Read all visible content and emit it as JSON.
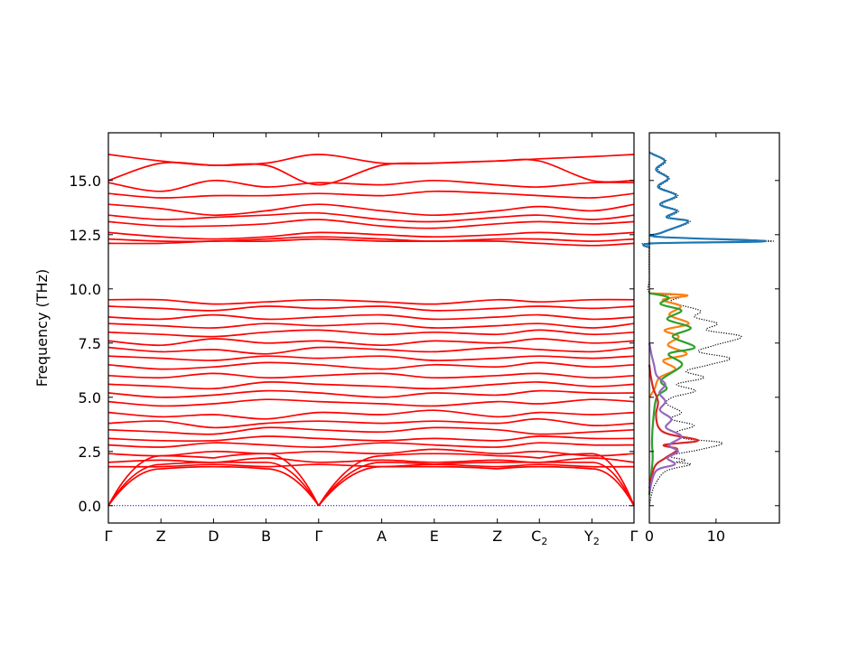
{
  "chart_data": [
    {
      "type": "line",
      "title": "",
      "ylabel": "Frequency (THz)",
      "xlabel": "",
      "ylim": [
        -0.8,
        17.2
      ],
      "yticks": [
        "0.0",
        "2.5",
        "5.0",
        "7.5",
        "10.0",
        "12.5",
        "15.0"
      ],
      "ytick_values": [
        0,
        2.5,
        5,
        7.5,
        10,
        12.5,
        15
      ],
      "path_points": [
        {
          "label": "Γ",
          "sub": ""
        },
        {
          "label": "Z",
          "sub": ""
        },
        {
          "label": "D",
          "sub": ""
        },
        {
          "label": "B",
          "sub": ""
        },
        {
          "label": "Γ",
          "sub": ""
        },
        {
          "label": "A",
          "sub": ""
        },
        {
          "label": "E",
          "sub": ""
        },
        {
          "label": "Z",
          "sub": ""
        },
        {
          "label": "C",
          "sub": "2"
        },
        {
          "label": "Y",
          "sub": "2"
        },
        {
          "label": "Γ",
          "sub": ""
        }
      ],
      "path_distances": [
        0,
        0.1,
        0.2,
        0.3,
        0.4,
        0.52,
        0.62,
        0.74,
        0.82,
        0.92,
        1.0
      ],
      "color": "#ff0000",
      "zero_line_color": "#0000cc",
      "flat_bands": [
        [
          12.1,
          12.1,
          12.2,
          12.2,
          12.3,
          12.2,
          12.2,
          12.2,
          12.1,
          12.0,
          12.1
        ],
        [
          12.3,
          12.2,
          12.2,
          12.3,
          12.4,
          12.3,
          12.2,
          12.3,
          12.3,
          12.2,
          12.3
        ],
        [
          12.6,
          12.4,
          12.3,
          12.4,
          12.6,
          12.5,
          12.4,
          12.5,
          12.6,
          12.5,
          12.6
        ],
        [
          13.1,
          12.9,
          12.9,
          13.0,
          13.2,
          12.9,
          12.8,
          13.0,
          13.1,
          13.0,
          13.1
        ],
        [
          13.4,
          13.2,
          13.3,
          13.4,
          13.5,
          13.2,
          13.1,
          13.3,
          13.4,
          13.2,
          13.4
        ],
        [
          13.9,
          13.7,
          13.4,
          13.6,
          13.9,
          13.6,
          13.4,
          13.6,
          13.8,
          13.6,
          13.9
        ],
        [
          14.4,
          14.2,
          14.3,
          14.3,
          14.4,
          14.3,
          14.5,
          14.4,
          14.3,
          14.2,
          14.4
        ],
        [
          14.9,
          14.5,
          15.0,
          14.7,
          14.9,
          14.8,
          15.0,
          14.8,
          14.7,
          14.9,
          14.9
        ],
        [
          15.0,
          15.8,
          15.7,
          15.7,
          14.8,
          15.7,
          15.8,
          15.9,
          15.9,
          15.0,
          15.0
        ],
        [
          16.2,
          15.9,
          15.7,
          15.8,
          16.2,
          15.8,
          15.8,
          15.9,
          16.0,
          16.1,
          16.2
        ],
        [
          1.8,
          1.8,
          1.9,
          1.8,
          1.9,
          1.8,
          1.9,
          1.8,
          1.9,
          1.8,
          1.8
        ],
        [
          2.0,
          2.1,
          2.0,
          2.2,
          2.0,
          2.1,
          2.0,
          2.1,
          2.0,
          2.2,
          2.0
        ],
        [
          2.4,
          2.3,
          2.5,
          2.4,
          2.5,
          2.4,
          2.6,
          2.4,
          2.5,
          2.3,
          2.4
        ],
        [
          2.8,
          2.7,
          2.9,
          2.8,
          2.7,
          2.9,
          2.8,
          2.7,
          2.9,
          2.8,
          2.8
        ],
        [
          3.1,
          3.0,
          3.0,
          3.2,
          3.1,
          3.0,
          3.1,
          3.0,
          3.2,
          3.1,
          3.1
        ],
        [
          3.5,
          3.4,
          3.3,
          3.6,
          3.5,
          3.4,
          3.6,
          3.5,
          3.3,
          3.4,
          3.5
        ],
        [
          3.8,
          3.9,
          3.6,
          3.8,
          3.9,
          3.8,
          3.9,
          3.8,
          4.0,
          3.7,
          3.8
        ],
        [
          4.3,
          4.1,
          4.2,
          4.0,
          4.3,
          4.2,
          4.4,
          4.1,
          4.3,
          4.2,
          4.3
        ],
        [
          4.8,
          4.6,
          4.7,
          4.9,
          4.8,
          4.7,
          4.6,
          4.8,
          4.7,
          4.9,
          4.8
        ],
        [
          5.2,
          5.0,
          5.1,
          5.3,
          5.2,
          5.0,
          5.2,
          5.1,
          5.3,
          5.2,
          5.2
        ],
        [
          5.6,
          5.5,
          5.4,
          5.7,
          5.6,
          5.5,
          5.4,
          5.6,
          5.7,
          5.5,
          5.6
        ],
        [
          6.0,
          5.9,
          6.1,
          5.9,
          6.0,
          6.1,
          5.9,
          6.0,
          6.1,
          5.9,
          6.0
        ],
        [
          6.5,
          6.3,
          6.4,
          6.6,
          6.5,
          6.3,
          6.5,
          6.4,
          6.6,
          6.4,
          6.5
        ],
        [
          6.9,
          6.8,
          6.7,
          6.9,
          6.8,
          6.9,
          6.7,
          6.8,
          6.9,
          6.8,
          6.9
        ],
        [
          7.3,
          7.1,
          7.2,
          7.0,
          7.3,
          7.2,
          7.1,
          7.3,
          7.2,
          7.1,
          7.3
        ],
        [
          7.6,
          7.4,
          7.7,
          7.5,
          7.6,
          7.4,
          7.6,
          7.5,
          7.7,
          7.5,
          7.6
        ],
        [
          8.0,
          7.9,
          7.8,
          8.0,
          8.1,
          7.9,
          8.0,
          7.9,
          8.1,
          7.9,
          8.0
        ],
        [
          8.4,
          8.3,
          8.2,
          8.4,
          8.3,
          8.4,
          8.2,
          8.3,
          8.4,
          8.2,
          8.4
        ],
        [
          8.7,
          8.6,
          8.8,
          8.6,
          8.7,
          8.8,
          8.6,
          8.7,
          8.8,
          8.6,
          8.7
        ],
        [
          9.2,
          9.1,
          9.0,
          9.2,
          9.1,
          9.2,
          9.0,
          9.1,
          9.2,
          9.1,
          9.2
        ],
        [
          9.5,
          9.5,
          9.3,
          9.4,
          9.5,
          9.4,
          9.3,
          9.5,
          9.4,
          9.5,
          9.5
        ]
      ],
      "acoustic_bands": [
        [
          0,
          1.7,
          1.8,
          1.7,
          0,
          1.8,
          1.8,
          1.7,
          1.8,
          1.7,
          0
        ],
        [
          0,
          1.9,
          2.0,
          2.0,
          0,
          2.0,
          1.9,
          2.0,
          2.0,
          2.0,
          0
        ],
        [
          0,
          2.3,
          2.2,
          2.4,
          0,
          2.3,
          2.4,
          2.3,
          2.2,
          2.4,
          0
        ]
      ]
    },
    {
      "type": "line",
      "title": "",
      "xlabel": "",
      "ylabel": "",
      "xlim": [
        0,
        19.5
      ],
      "xticks": [
        "0",
        "10"
      ],
      "xtick_values": [
        0,
        10
      ],
      "series": [
        {
          "color": "#000000",
          "style": "dotted",
          "points": [
            [
              0.0,
              0.0
            ],
            [
              0.4,
              0.6
            ],
            [
              0.9,
              1.0
            ],
            [
              2.5,
              1.6
            ],
            [
              6.2,
              1.9
            ],
            [
              4.0,
              2.0
            ],
            [
              5.4,
              2.1
            ],
            [
              3.1,
              2.3
            ],
            [
              7.8,
              2.6
            ],
            [
              10.9,
              2.9
            ],
            [
              5.2,
              3.1
            ],
            [
              4.1,
              3.4
            ],
            [
              6.7,
              3.7
            ],
            [
              3.2,
              4.0
            ],
            [
              4.8,
              4.3
            ],
            [
              2.6,
              4.7
            ],
            [
              3.5,
              5.0
            ],
            [
              6.9,
              5.3
            ],
            [
              4.1,
              5.6
            ],
            [
              8.2,
              5.9
            ],
            [
              5.5,
              6.2
            ],
            [
              9.0,
              6.5
            ],
            [
              12.1,
              6.8
            ],
            [
              7.4,
              7.1
            ],
            [
              9.8,
              7.4
            ],
            [
              13.8,
              7.8
            ],
            [
              8.6,
              8.1
            ],
            [
              10.2,
              8.4
            ],
            [
              6.8,
              8.7
            ],
            [
              7.6,
              9.0
            ],
            [
              3.2,
              9.4
            ],
            [
              5.2,
              9.7
            ],
            [
              0.2,
              9.8
            ],
            [
              0.0,
              10.5
            ],
            [
              0.0,
              11.9
            ],
            [
              0.4,
              12.1
            ],
            [
              18.6,
              12.2
            ],
            [
              1.5,
              12.4
            ],
            [
              2.1,
              12.6
            ],
            [
              6.1,
              13.1
            ],
            [
              3.0,
              13.3
            ],
            [
              4.4,
              13.6
            ],
            [
              1.9,
              13.9
            ],
            [
              4.3,
              14.3
            ],
            [
              1.6,
              14.7
            ],
            [
              3.0,
              15.1
            ],
            [
              1.3,
              15.5
            ],
            [
              2.5,
              15.9
            ],
            [
              0.8,
              16.2
            ],
            [
              0.0,
              16.3
            ]
          ]
        },
        {
          "color": "#1f77b4",
          "style": "solid",
          "points": [
            [
              0.0,
              11.9
            ],
            [
              0.5,
              12.1
            ],
            [
              17.4,
              12.2
            ],
            [
              1.3,
              12.4
            ],
            [
              1.9,
              12.6
            ],
            [
              5.8,
              13.1
            ],
            [
              2.6,
              13.3
            ],
            [
              4.1,
              13.6
            ],
            [
              1.6,
              13.9
            ],
            [
              4.0,
              14.3
            ],
            [
              1.3,
              14.7
            ],
            [
              2.8,
              15.1
            ],
            [
              1.0,
              15.5
            ],
            [
              2.3,
              15.9
            ],
            [
              0.6,
              16.2
            ],
            [
              0.0,
              16.3
            ]
          ]
        },
        {
          "color": "#ff7f0e",
          "style": "solid",
          "points": [
            [
              0.0,
              5.0
            ],
            [
              0.8,
              5.4
            ],
            [
              1.5,
              5.9
            ],
            [
              3.9,
              6.3
            ],
            [
              2.1,
              6.7
            ],
            [
              5.6,
              7.0
            ],
            [
              2.8,
              7.4
            ],
            [
              4.4,
              7.8
            ],
            [
              2.3,
              8.1
            ],
            [
              5.9,
              8.4
            ],
            [
              3.0,
              8.8
            ],
            [
              4.7,
              9.2
            ],
            [
              2.0,
              9.5
            ],
            [
              5.7,
              9.7
            ],
            [
              0.0,
              9.8
            ]
          ]
        },
        {
          "color": "#2ca02c",
          "style": "solid",
          "points": [
            [
              0.0,
              0.5
            ],
            [
              0.3,
              1.5
            ],
            [
              0.5,
              2.2
            ],
            [
              0.4,
              3.0
            ],
            [
              0.6,
              4.0
            ],
            [
              1.1,
              5.0
            ],
            [
              2.6,
              5.4
            ],
            [
              1.8,
              5.8
            ],
            [
              4.9,
              6.5
            ],
            [
              2.9,
              7.0
            ],
            [
              6.8,
              7.3
            ],
            [
              3.5,
              7.8
            ],
            [
              6.2,
              8.2
            ],
            [
              2.7,
              8.6
            ],
            [
              4.8,
              9.0
            ],
            [
              1.7,
              9.3
            ],
            [
              2.9,
              9.6
            ],
            [
              0.0,
              9.8
            ]
          ]
        },
        {
          "color": "#d62728",
          "style": "solid",
          "points": [
            [
              0.0,
              0.8
            ],
            [
              0.8,
              1.8
            ],
            [
              2.4,
              2.2
            ],
            [
              4.2,
              2.6
            ],
            [
              2.2,
              2.8
            ],
            [
              7.3,
              3.0
            ],
            [
              2.9,
              3.3
            ],
            [
              1.4,
              3.6
            ],
            [
              1.0,
              4.2
            ],
            [
              1.3,
              4.8
            ],
            [
              0.6,
              5.4
            ],
            [
              0.2,
              6.0
            ],
            [
              0.0,
              6.5
            ]
          ]
        },
        {
          "color": "#9467bd",
          "style": "solid",
          "points": [
            [
              0.0,
              0.6
            ],
            [
              1.0,
              1.6
            ],
            [
              3.8,
              1.9
            ],
            [
              2.7,
              2.2
            ],
            [
              4.3,
              2.5
            ],
            [
              3.0,
              2.8
            ],
            [
              4.8,
              3.2
            ],
            [
              2.5,
              3.6
            ],
            [
              3.3,
              4.0
            ],
            [
              1.6,
              4.4
            ],
            [
              2.4,
              4.8
            ],
            [
              1.5,
              5.2
            ],
            [
              2.4,
              5.6
            ],
            [
              1.1,
              6.0
            ],
            [
              0.7,
              6.5
            ],
            [
              0.3,
              7.0
            ],
            [
              0.0,
              7.5
            ]
          ]
        }
      ]
    }
  ]
}
